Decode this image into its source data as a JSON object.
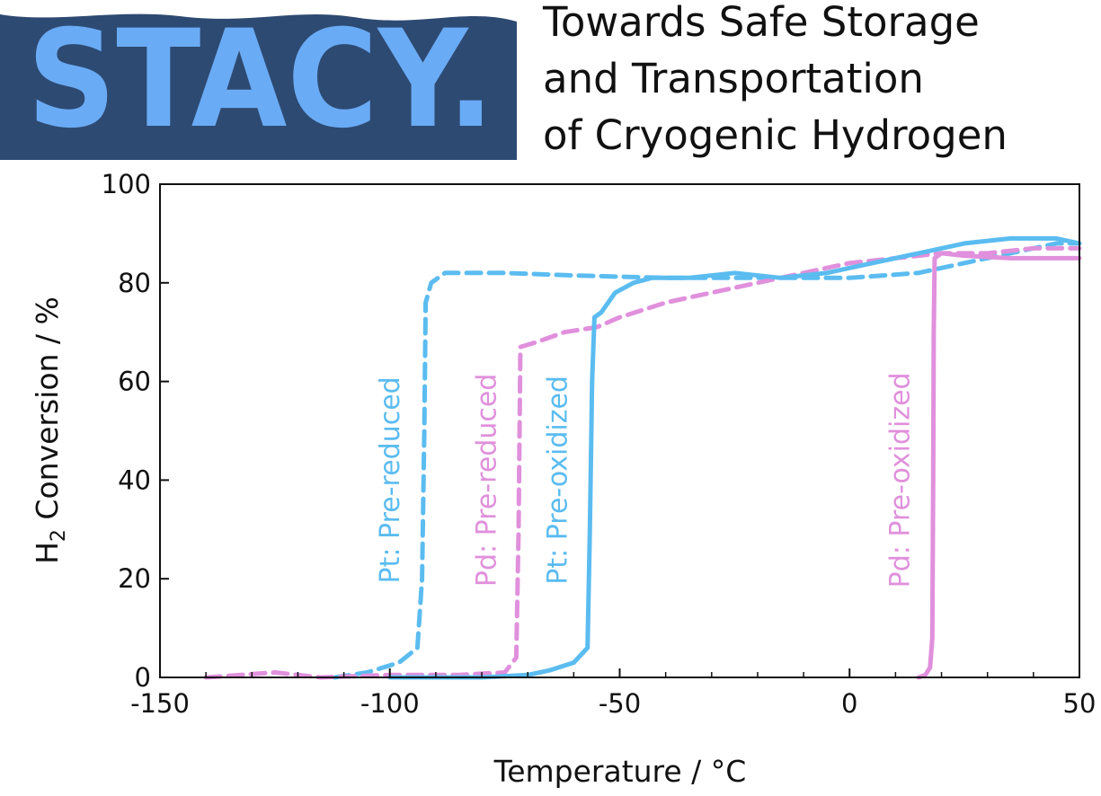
{
  "banner": {
    "logo_text": "STACY.",
    "colors": {
      "background": "#2d4a72",
      "letters": "#6aabf5"
    }
  },
  "headline": {
    "lines": [
      "Towards Safe Storage",
      "and Transportation",
      "of Cryogenic Hydrogen"
    ]
  },
  "chart_data": {
    "type": "line",
    "xlabel": "Temperature / °C",
    "ylabel_main": "H",
    "ylabel_sub": "2",
    "ylabel_rest": " Conversion / %",
    "xlim": [
      -150,
      50
    ],
    "ylim": [
      0,
      100
    ],
    "xticks": [
      -150,
      -100,
      -50,
      0,
      50
    ],
    "yticks": [
      0,
      20,
      40,
      60,
      80,
      100
    ],
    "grid": false,
    "legend": "none",
    "series": [
      {
        "name": "Pt: Pre-reduced",
        "color": "#5bbcf0",
        "style": "dashed",
        "points": [
          [
            -112,
            0
          ],
          [
            -105,
            1
          ],
          [
            -98,
            3
          ],
          [
            -94,
            6
          ],
          [
            -93,
            20
          ],
          [
            -92.5,
            50
          ],
          [
            -92.2,
            76
          ],
          [
            -91,
            80
          ],
          [
            -88,
            82
          ],
          [
            -75,
            82
          ],
          [
            -60,
            81.5
          ],
          [
            -40,
            81
          ],
          [
            -20,
            81
          ],
          [
            0,
            81
          ],
          [
            15,
            82
          ],
          [
            25,
            84
          ],
          [
            35,
            86
          ],
          [
            45,
            88
          ],
          [
            50,
            88
          ]
        ]
      },
      {
        "name": "Pd: Pre-reduced",
        "color": "#e090dc",
        "style": "dashed",
        "points": [
          [
            -140,
            0
          ],
          [
            -125,
            1
          ],
          [
            -115,
            0
          ],
          [
            -100,
            0.5
          ],
          [
            -85,
            0.5
          ],
          [
            -75,
            1
          ],
          [
            -72.5,
            4
          ],
          [
            -72,
            30
          ],
          [
            -71.6,
            67
          ],
          [
            -68,
            68
          ],
          [
            -62,
            70
          ],
          [
            -55,
            71
          ],
          [
            -50,
            73
          ],
          [
            -40,
            76
          ],
          [
            -30,
            78
          ],
          [
            -20,
            80
          ],
          [
            -10,
            82
          ],
          [
            0,
            84
          ],
          [
            10,
            85
          ],
          [
            20,
            86
          ],
          [
            30,
            86
          ],
          [
            40,
            87
          ],
          [
            50,
            87
          ]
        ]
      },
      {
        "name": "Pt: Pre-oxidized",
        "color": "#5bbcf0",
        "style": "solid",
        "points": [
          [
            -100,
            0
          ],
          [
            -80,
            0
          ],
          [
            -70,
            0.5
          ],
          [
            -65,
            1.5
          ],
          [
            -60,
            3
          ],
          [
            -57,
            6
          ],
          [
            -56.5,
            30
          ],
          [
            -56,
            60
          ],
          [
            -55.5,
            73
          ],
          [
            -54,
            74
          ],
          [
            -51,
            78
          ],
          [
            -47,
            80
          ],
          [
            -43,
            81
          ],
          [
            -35,
            81
          ],
          [
            -25,
            82
          ],
          [
            -15,
            81
          ],
          [
            -5,
            82
          ],
          [
            5,
            84
          ],
          [
            15,
            86
          ],
          [
            25,
            88
          ],
          [
            35,
            89
          ],
          [
            45,
            89
          ],
          [
            50,
            88
          ]
        ]
      },
      {
        "name": "Pd: Pre-oxidized",
        "color": "#e090dc",
        "style": "solid",
        "points": [
          [
            15,
            0
          ],
          [
            16.5,
            0.5
          ],
          [
            17.5,
            2
          ],
          [
            18,
            8
          ],
          [
            18.2,
            40
          ],
          [
            18.3,
            70
          ],
          [
            18.5,
            85
          ],
          [
            20,
            86
          ],
          [
            25,
            85.5
          ],
          [
            35,
            85
          ],
          [
            50,
            85
          ]
        ]
      }
    ]
  }
}
